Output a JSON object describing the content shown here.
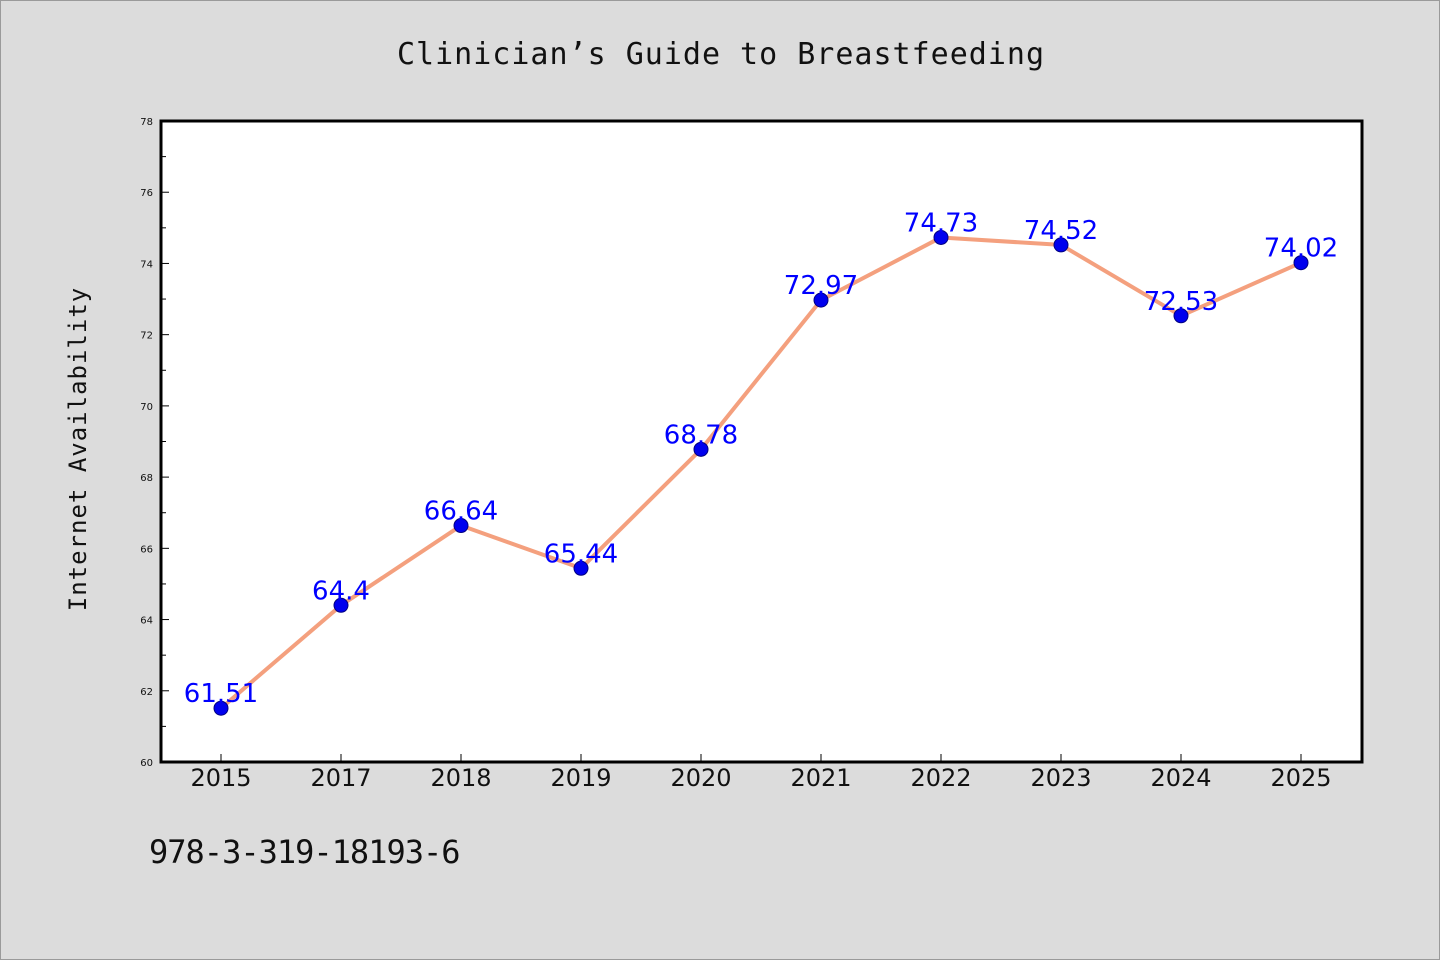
{
  "title": "Clinician’s Guide to Breastfeeding",
  "footer": "978-3-319-18193-6",
  "colors": {
    "background": "#dcdcdc",
    "plot_background": "#ffffff",
    "line": "#f4a07e",
    "marker": "#0000ee",
    "data_label": "#0000ff"
  },
  "chart_data": {
    "type": "line",
    "ylabel": "Internet Availability",
    "categories": [
      "2015",
      "2017",
      "2018",
      "2019",
      "2020",
      "2021",
      "2022",
      "2023",
      "2024",
      "2025"
    ],
    "series": [
      {
        "values": [
          61.51,
          64.4,
          66.64,
          65.44,
          68.78,
          72.97,
          74.73,
          74.52,
          72.53,
          74.02
        ],
        "labels": [
          "61.51",
          "64.4",
          "66.64",
          "65.44",
          "68.78",
          "72.97",
          "74.73",
          "74.52",
          "72.53",
          "74.02"
        ]
      }
    ],
    "ylim": [
      60,
      78
    ],
    "yticks": [
      "60",
      "62",
      "64",
      "66",
      "68",
      "70",
      "72",
      "74",
      "76",
      "78"
    ],
    "grid": false,
    "legend": "none"
  }
}
